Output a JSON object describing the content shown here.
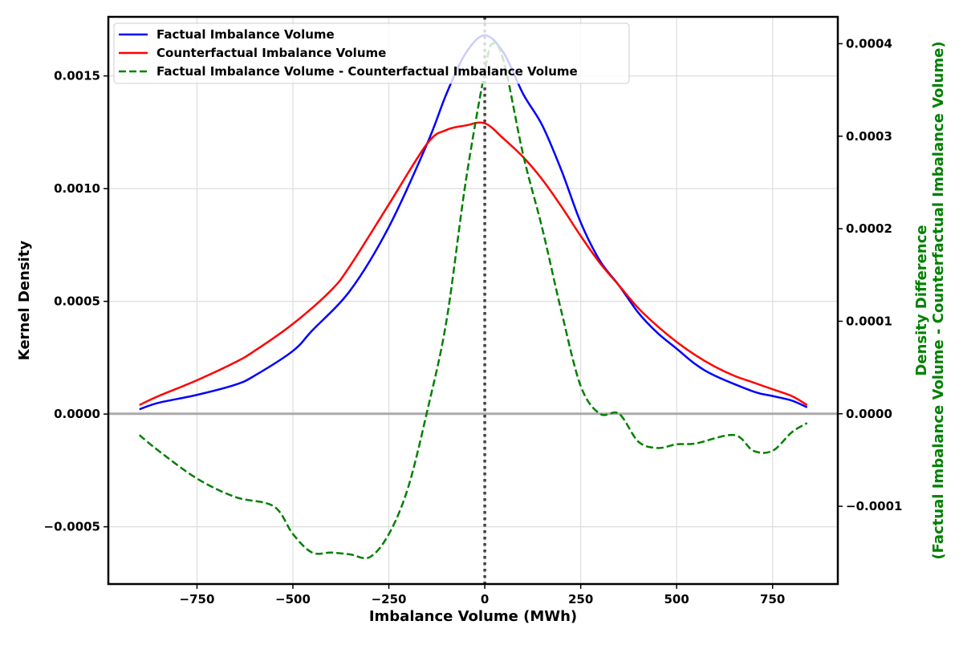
{
  "chart_data": {
    "type": "line",
    "xlabel": "Imbalance Volume (MWh)",
    "ylabel": "Kernel Density",
    "y2label_line1": "Density Difference",
    "y2label_line2": "(Factual Imbalance Volume - Counterfactual Imbalance Volume)",
    "xlim": [
      -981,
      920
    ],
    "ylim": [
      -0.000754,
      0.001762
    ],
    "y2lim": [
      -0.000184,
      0.000429
    ],
    "grid": true,
    "legend_position": "top-left",
    "xticks": [
      -750,
      -500,
      -250,
      0,
      250,
      500,
      750
    ],
    "xtick_labels": [
      "−750",
      "−500",
      "−250",
      "0",
      "250",
      "500",
      "750"
    ],
    "yticks": [
      -0.0005,
      0.0,
      0.0005,
      0.001,
      0.0015
    ],
    "ytick_labels": [
      "−0.0005",
      "0.0000",
      "0.0005",
      "0.0010",
      "0.0015"
    ],
    "y2ticks": [
      -0.0001,
      0.0,
      0.0001,
      0.0002,
      0.0003,
      0.0004
    ],
    "y2tick_labels": [
      "−0.0001",
      "0.0000",
      "0.0001",
      "0.0002",
      "0.0003",
      "0.0004"
    ],
    "vline_x": 0,
    "hline_y2": 0,
    "series": [
      {
        "name": "Factual Imbalance Volume",
        "axis": "left",
        "color": "#0000ff",
        "style": "solid",
        "x": [
          -900,
          -850,
          -750,
          -650,
          -600,
          -500,
          -450,
          -350,
          -250,
          -150,
          -100,
          -50,
          0,
          50,
          100,
          150,
          200,
          250,
          300,
          350,
          400,
          450,
          500,
          550,
          600,
          700,
          750,
          800,
          840
        ],
        "y": [
          2.1e-05,
          5e-05,
          8.5e-05,
          0.00013,
          0.00017,
          0.00028,
          0.00037,
          0.00055,
          0.00083,
          0.0012,
          0.00142,
          0.0016,
          0.00168,
          0.0016,
          0.00142,
          0.00128,
          0.00108,
          0.00085,
          0.00068,
          0.00057,
          0.00045,
          0.00036,
          0.00029,
          0.00022,
          0.00017,
          0.0001,
          8e-05,
          6e-05,
          3e-05
        ]
      },
      {
        "name": "Counterfactual Imbalance Volume",
        "axis": "left",
        "color": "#ff0000",
        "style": "solid",
        "x": [
          -900,
          -850,
          -750,
          -650,
          -600,
          -500,
          -400,
          -350,
          -250,
          -150,
          -100,
          -50,
          0,
          50,
          100,
          150,
          200,
          250,
          300,
          350,
          400,
          450,
          500,
          550,
          600,
          650,
          700,
          750,
          800,
          840
        ],
        "y": [
          4e-05,
          8e-05,
          0.00015,
          0.00023,
          0.00028,
          0.0004,
          0.00055,
          0.00066,
          0.00093,
          0.0012,
          0.00126,
          0.00128,
          0.00129,
          0.00122,
          0.00114,
          0.00104,
          0.00092,
          0.00079,
          0.00067,
          0.00057,
          0.00047,
          0.00039,
          0.00032,
          0.00026,
          0.00021,
          0.00017,
          0.00014,
          0.00011,
          8e-05,
          4e-05
        ]
      },
      {
        "name": "Factual Imbalance Volume - Counterfactual Imbalance Volume",
        "axis": "right",
        "color": "#008000",
        "style": "dashed",
        "x": [
          -900,
          -850,
          -750,
          -650,
          -550,
          -500,
          -450,
          -400,
          -350,
          -300,
          -250,
          -200,
          -150,
          -100,
          -50,
          0,
          20,
          50,
          100,
          150,
          200,
          250,
          300,
          350,
          400,
          450,
          500,
          550,
          650,
          700,
          750,
          800,
          840
        ],
        "y": [
          -2.3e-05,
          -4e-05,
          -7e-05,
          -9e-05,
          -0.0001,
          -0.00013,
          -0.00015,
          -0.00015,
          -0.000152,
          -0.000155,
          -0.00013,
          -8e-05,
          3e-06,
          0.0001,
          0.00025,
          0.00037,
          0.0004,
          0.00038,
          0.00028,
          0.0002,
          0.00011,
          3e-05,
          0.0,
          0.0,
          -3e-05,
          -3.7e-05,
          -3.3e-05,
          -3.2e-05,
          -2.3e-05,
          -4e-05,
          -4e-05,
          -2e-05,
          -1e-05
        ]
      }
    ]
  }
}
